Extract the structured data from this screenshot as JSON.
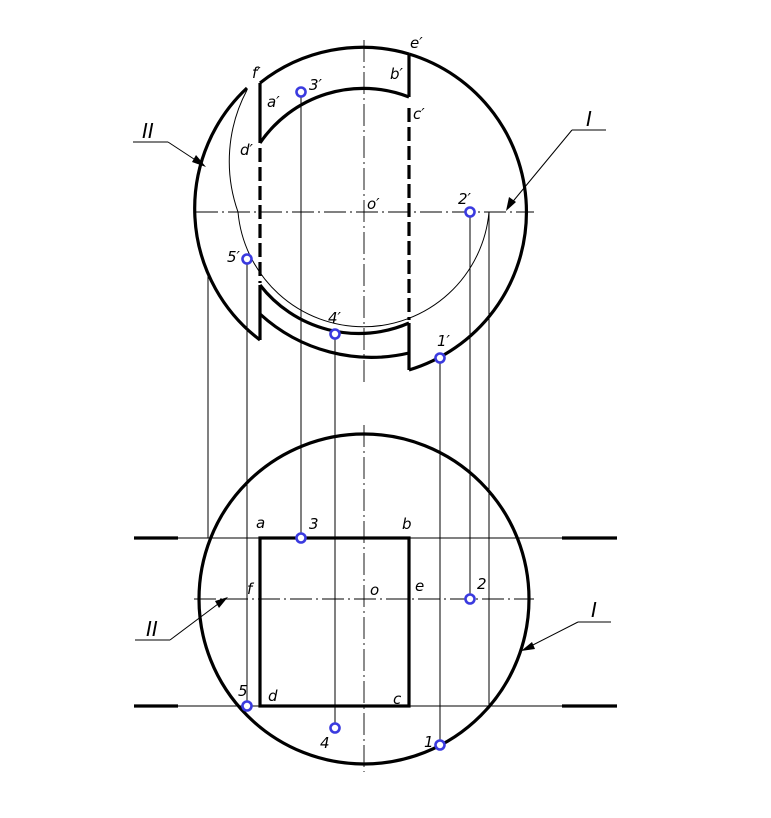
{
  "front_view": {
    "labels": {
      "f_prime": "f′",
      "e_prime": "e′",
      "a_prime": "a′",
      "three_prime": "3′",
      "b_prime": "b′",
      "c_prime": "c′",
      "d_prime": "d′",
      "o_prime": "o′",
      "two_prime": "2′",
      "five_prime": "5′",
      "four_prime": "4′",
      "one_prime": "1′",
      "roman_two": "II",
      "roman_one": "I"
    }
  },
  "top_view": {
    "labels": {
      "a": "a",
      "three": "3",
      "b": "b",
      "f": "f",
      "o": "o",
      "e": "e",
      "two": "2",
      "five": "5",
      "d": "d",
      "c": "c",
      "four": "4",
      "one": "1",
      "roman_two": "II",
      "roman_one": "I"
    }
  },
  "colors": {
    "point_marker": "#3a3adf",
    "line": "#000000"
  }
}
